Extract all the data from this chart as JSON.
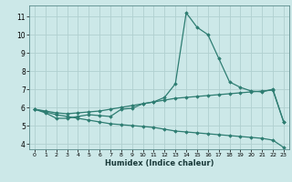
{
  "title": "",
  "xlabel": "Humidex (Indice chaleur)",
  "ylabel": "",
  "bg_color": "#cce8e8",
  "grid_color": "#b0d0d0",
  "line_color": "#2e7d72",
  "x": [
    0,
    1,
    2,
    3,
    4,
    5,
    6,
    7,
    8,
    9,
    10,
    11,
    12,
    13,
    14,
    15,
    16,
    17,
    18,
    19,
    20,
    21,
    22,
    23
  ],
  "line1": [
    5.9,
    5.7,
    5.4,
    5.4,
    5.5,
    5.6,
    5.55,
    5.5,
    5.9,
    5.95,
    6.2,
    6.3,
    6.55,
    7.3,
    11.2,
    10.4,
    10.0,
    8.7,
    7.4,
    7.1,
    6.9,
    6.85,
    7.0,
    5.2
  ],
  "line2": [
    5.9,
    5.8,
    5.7,
    5.65,
    5.7,
    5.75,
    5.8,
    5.9,
    6.0,
    6.1,
    6.2,
    6.3,
    6.4,
    6.5,
    6.55,
    6.6,
    6.65,
    6.7,
    6.75,
    6.8,
    6.85,
    6.9,
    6.95,
    5.2
  ],
  "line3": [
    5.9,
    5.75,
    5.6,
    5.5,
    5.4,
    5.3,
    5.2,
    5.1,
    5.05,
    5.0,
    4.95,
    4.9,
    4.8,
    4.7,
    4.65,
    4.6,
    4.55,
    4.5,
    4.45,
    4.4,
    4.35,
    4.3,
    4.2,
    3.8
  ],
  "xlim": [
    -0.5,
    23.5
  ],
  "ylim": [
    3.7,
    11.6
  ],
  "yticks": [
    4,
    5,
    6,
    7,
    8,
    9,
    10,
    11
  ],
  "xticks": [
    0,
    1,
    2,
    3,
    4,
    5,
    6,
    7,
    8,
    9,
    10,
    11,
    12,
    13,
    14,
    15,
    16,
    17,
    18,
    19,
    20,
    21,
    22,
    23
  ],
  "marker": "D",
  "markersize": 1.8,
  "linewidth": 0.9
}
